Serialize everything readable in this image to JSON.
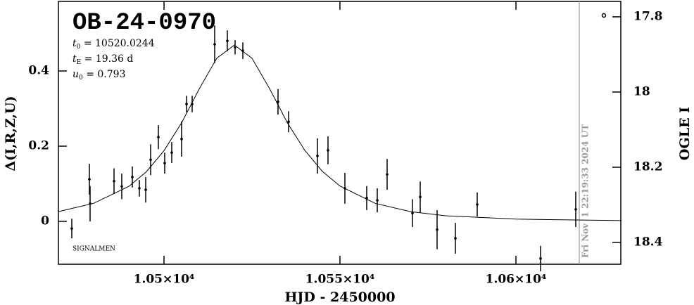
{
  "chart_data": {
    "type": "scatter",
    "title": "OB-24-0970",
    "parameters": [
      {
        "symbol": "t",
        "sub": "0",
        "text": " = 10520.0244"
      },
      {
        "symbol": "t",
        "sub": "E",
        "text": " = 19.36 d"
      },
      {
        "symbol": "u",
        "sub": "0",
        "text": " = 0.793"
      }
    ],
    "credit": "SIGNALMEN",
    "timestamp": "Fri Nov  1 22:19:33 2024 UT",
    "x_label": "HJD - 2450000",
    "y_label": "Δ(I,R,Z,U)",
    "y2_label": "OGLE I",
    "xlim": [
      10470,
      10629.8
    ],
    "xticks": [
      {
        "value": 10500,
        "label": "1.05×10⁴"
      },
      {
        "value": 10550,
        "label": "1.055×10⁴"
      },
      {
        "value": 10600,
        "label": "1.06×10⁴"
      }
    ],
    "ylim": [
      -0.114,
      0.585
    ],
    "yticks": [
      0,
      0.2,
      0.4
    ],
    "y2lim": [
      18.458,
      17.759
    ],
    "y2ticks": [
      17.8,
      18,
      18.2,
      18.4
    ],
    "now_line": 10618,
    "color": "#000000",
    "x": [
      10473.8,
      10478.8,
      10479.0,
      10485.8,
      10488.0,
      10491.0,
      10493.0,
      10494.8,
      10496.2,
      10498.4,
      10500.2,
      10502.2,
      10505.0,
      10506.4,
      10508.0,
      10514.4,
      10518.0,
      10520.2,
      10522.4,
      10532.4,
      10535.4,
      10543.6,
      10546.6,
      10551.4,
      10557.6,
      10560.6,
      10563.4,
      10570.6,
      10572.8,
      10577.6,
      10582.8,
      10589.0,
      10607.0,
      10617.0
    ],
    "values": [
      -0.019,
      0.112,
      0.047,
      0.107,
      0.093,
      0.118,
      0.088,
      0.084,
      0.164,
      0.224,
      0.155,
      0.183,
      0.219,
      0.312,
      0.312,
      0.471,
      0.48,
      0.463,
      0.454,
      0.318,
      0.265,
      0.174,
      0.189,
      0.088,
      0.062,
      0.056,
      0.125,
      0.022,
      0.065,
      -0.022,
      -0.045,
      0.045,
      -0.099,
      0.032
    ],
    "errors": [
      0.026,
      0.041,
      0.047,
      0.034,
      0.034,
      0.028,
      0.022,
      0.034,
      0.041,
      0.032,
      0.028,
      0.028,
      0.047,
      0.022,
      0.022,
      0.05,
      0.028,
      0.019,
      0.022,
      0.034,
      0.028,
      0.047,
      0.037,
      0.041,
      0.032,
      0.032,
      0.041,
      0.037,
      0.041,
      0.052,
      0.041,
      0.032,
      0.034,
      0.047
    ],
    "model": {
      "x": [
        10470,
        10480,
        10490,
        10495,
        10500,
        10505,
        10510,
        10515,
        10520,
        10525,
        10530,
        10535,
        10540,
        10545,
        10550,
        10560,
        10570,
        10580,
        10600,
        10630
      ],
      "values": [
        0.026,
        0.048,
        0.093,
        0.132,
        0.188,
        0.262,
        0.352,
        0.434,
        0.469,
        0.434,
        0.353,
        0.263,
        0.189,
        0.133,
        0.094,
        0.048,
        0.026,
        0.015,
        0.006,
        0.002
      ]
    }
  }
}
